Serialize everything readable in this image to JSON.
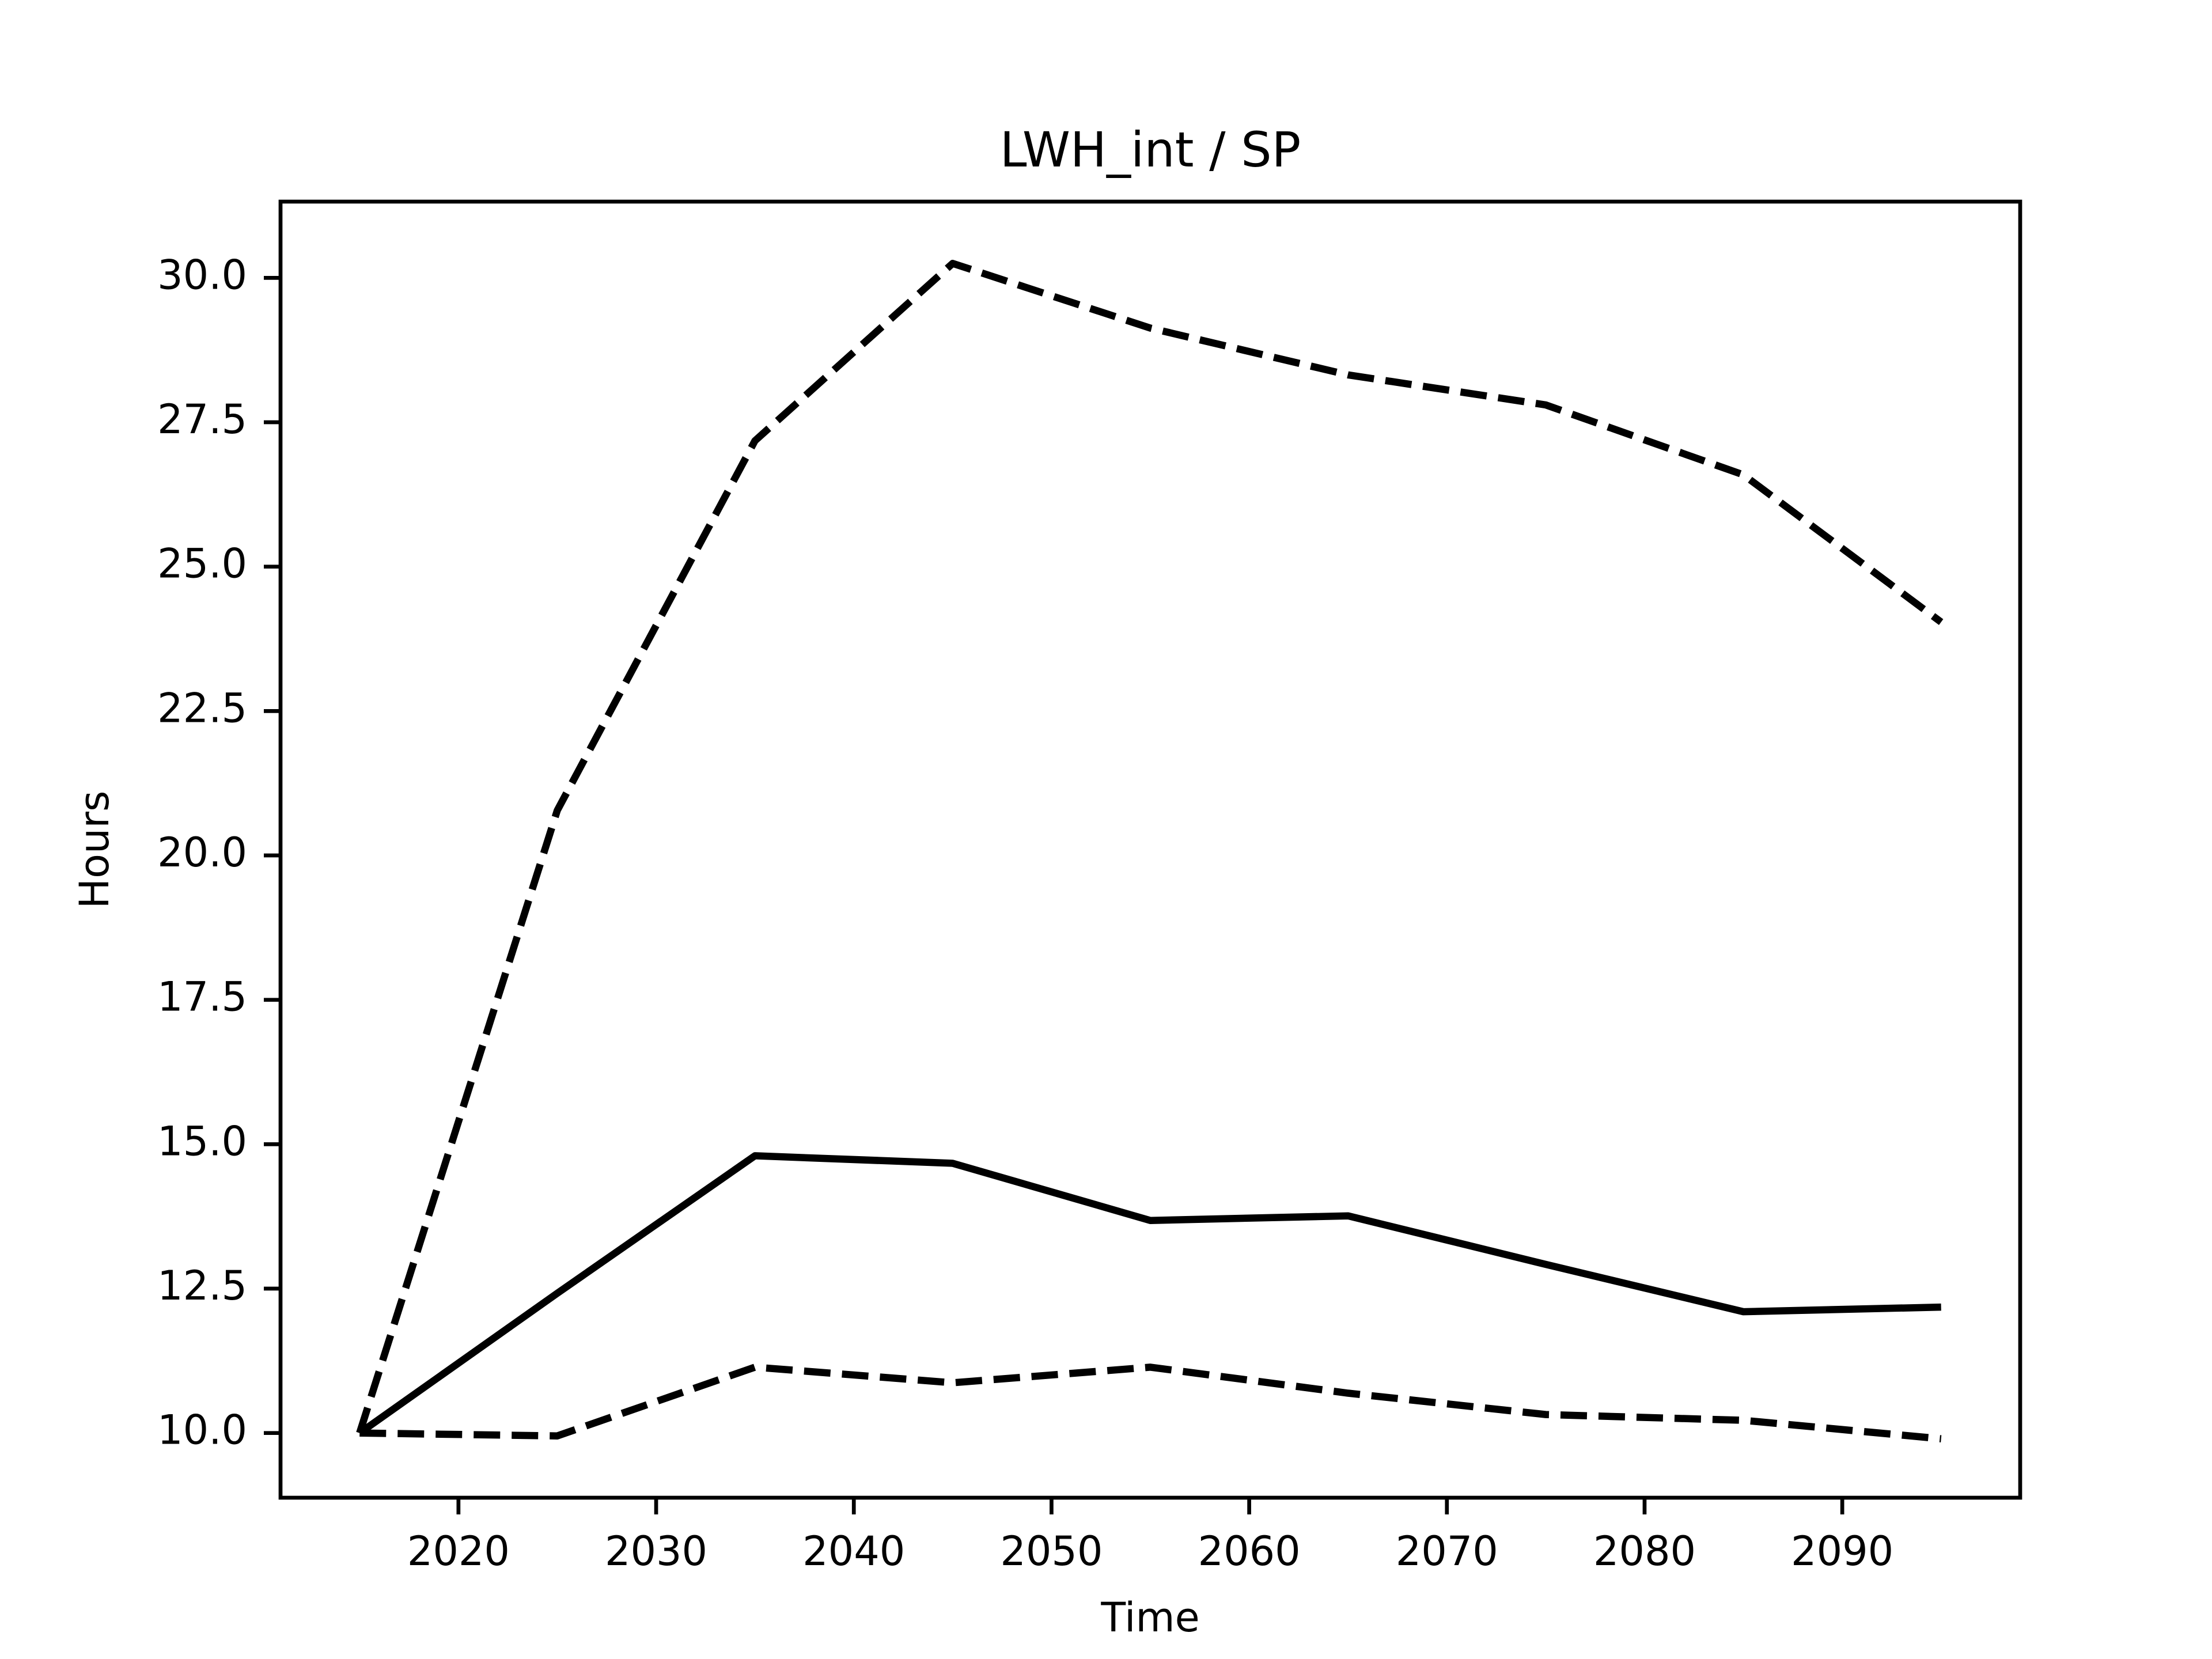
{
  "chart_data": {
    "type": "line",
    "title": "LWH_int / SP",
    "x_label": "Time",
    "y_label": "Hours",
    "x": [
      2015,
      2025,
      2035,
      2045,
      2055,
      2065,
      2075,
      2085,
      2095
    ],
    "series": [
      {
        "color": "#000000",
        "dashed": true,
        "values": [
          10.0,
          20.78,
          27.18,
          30.25,
          29.13,
          28.32,
          27.8,
          26.59,
          24.04
        ]
      },
      {
        "color": "#000000",
        "dashed": false,
        "values": [
          10.0,
          12.42,
          14.8,
          14.67,
          13.68,
          13.76,
          12.92,
          12.1,
          12.18
        ]
      },
      {
        "color": "#000000",
        "dashed": true,
        "values": [
          10.0,
          9.95,
          11.14,
          10.87,
          11.14,
          10.69,
          10.32,
          10.22,
          9.9
        ]
      }
    ],
    "xlim": [
      2011,
      2099
    ],
    "xticks": [
      2020,
      2030,
      2040,
      2050,
      2060,
      2070,
      2080,
      2090
    ],
    "ylim": [
      8.88,
      31.32
    ],
    "yticks": [
      {
        "value": 10,
        "label": "10.0"
      },
      12.5,
      {
        "value": 15,
        "label": "15.0"
      },
      17.5,
      {
        "value": 20,
        "label": "20.0"
      },
      22.5,
      {
        "value": 25,
        "label": "25.0"
      },
      27.5,
      {
        "value": 30,
        "label": "30.0"
      }
    ],
    "grid": false
  }
}
